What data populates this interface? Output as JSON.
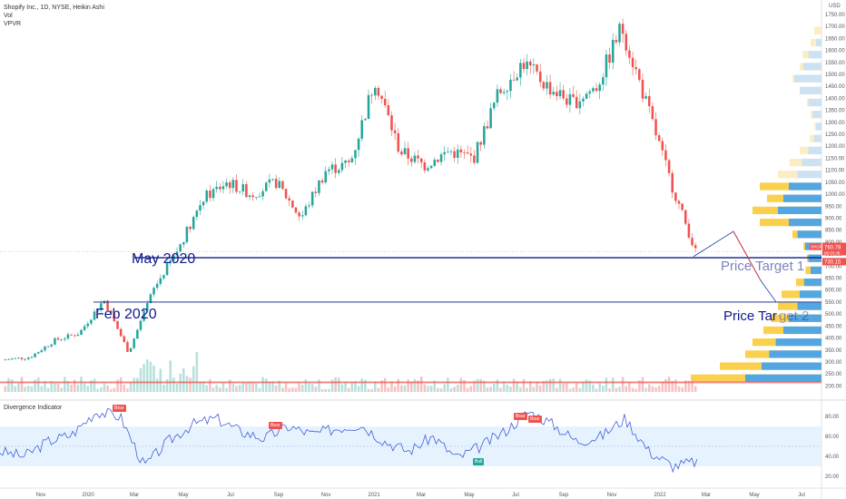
{
  "header": {
    "title": "Shopify Inc., 1D, NYSE, Heikin Ashi",
    "line2": "Vol",
    "line3": "VPVR"
  },
  "indicator": {
    "title": "Divergence Indicator",
    "bull_label": "Bull",
    "bear_label": "Bear"
  },
  "annotations": {
    "may": "May 2020",
    "feb": "Feb 2020",
    "target1": "Price Target 1",
    "target2_a": "Price Tar",
    "target2_b": "get 2"
  },
  "axis": {
    "currency": "USD",
    "symbol": "SHOP",
    "last_price": "760.78",
    "countdown": "05:03:38",
    "low_price": "730.15"
  },
  "colors": {
    "up": "#26a69a",
    "down": "#ef5350",
    "line": "#0d1a8c",
    "vp_yellow": "#fbcb3a",
    "vp_blue": "#4aa3e8",
    "rsi_band": "#dceeff",
    "rsi_line": "#3f5ed8"
  },
  "chart_data": [
    {
      "type": "line",
      "ylim": [
        175,
        1780
      ],
      "y_ticks": [
        1750,
        1700,
        1650,
        1600,
        1550,
        1500,
        1450,
        1400,
        1350,
        1300,
        1250,
        1200,
        1150,
        1100,
        1050,
        1000,
        950,
        900,
        850,
        800,
        750,
        700,
        650,
        600,
        550,
        500,
        450,
        400,
        350,
        300,
        250,
        200
      ],
      "x_ticks": [
        "Nov",
        "2020",
        "Mar",
        "May",
        "Jul",
        "Sep",
        "Nov",
        "2021",
        "Mar",
        "May",
        "Jul",
        "Sep",
        "Nov",
        "2022",
        "Mar",
        "May",
        "Jul"
      ],
      "x": [
        "Oct 2019",
        "Nov 2019",
        "Dec 2019",
        "Jan 2020",
        "Feb 2020",
        "Mar 2020",
        "Apr 2020",
        "May 2020",
        "Jun 2020",
        "Jul 2020",
        "Aug 2020",
        "Sep 2020",
        "Oct 2020",
        "Nov 2020",
        "Dec 2020",
        "Jan 2021",
        "Feb 2021",
        "Mar 2021",
        "Apr 2021",
        "May 2021",
        "Jun 2021",
        "Jul 2021",
        "Aug 2021",
        "Sep 2021",
        "Oct 2021",
        "Nov 2021",
        "Dec 2021",
        "Jan 2022",
        "Feb 2022"
      ],
      "values": [
        310,
        320,
        390,
        420,
        560,
        340,
        600,
        770,
        980,
        1050,
        1000,
        1050,
        900,
        1100,
        1130,
        1480,
        1180,
        1120,
        1180,
        1150,
        1420,
        1550,
        1450,
        1380,
        1450,
        1700,
        1380,
        1050,
        760
      ],
      "horizontal_levels": [
        {
          "name": "May 2020",
          "value": 735
        },
        {
          "name": "Feb 2020",
          "value": 550
        },
        {
          "name": "base",
          "value": 215
        }
      ],
      "price_targets": [
        "Price Target 1",
        "Price Target 2"
      ]
    },
    {
      "type": "line",
      "title": "Divergence Indicator",
      "ylim": [
        10,
        90
      ],
      "y_ticks": [
        80,
        60,
        40,
        20
      ],
      "band": [
        30,
        70
      ],
      "values": [
        45,
        40,
        55,
        62,
        85,
        80,
        30,
        55,
        72,
        78,
        65,
        58,
        70,
        62,
        68,
        72,
        55,
        45,
        60,
        38,
        50,
        65,
        85,
        72,
        55,
        60,
        78,
        45,
        30,
        35
      ]
    }
  ]
}
